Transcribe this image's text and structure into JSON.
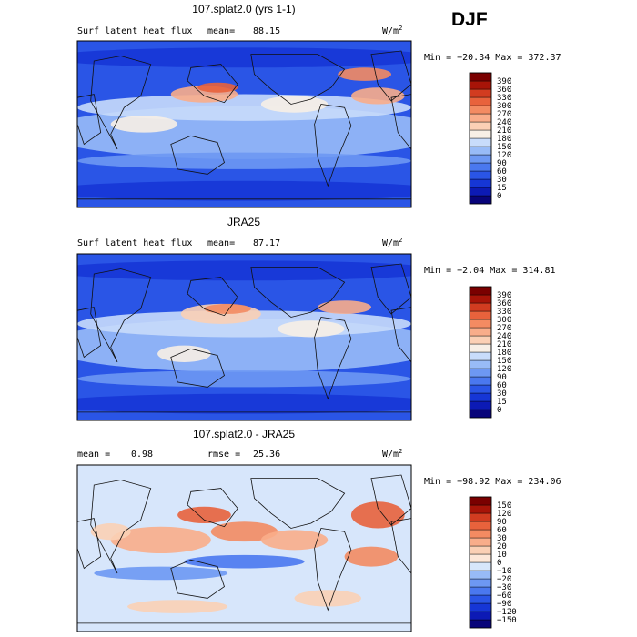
{
  "season": "DJF",
  "units_label": "W/m",
  "units_exp": "2",
  "chart_data": [
    {
      "type": "heatmap",
      "title": "107.splat2.0 (yrs 1-1)",
      "variable": "Surf latent heat flux",
      "stat_label": "mean=",
      "stat_value": "88.15",
      "range_text": "Min = −20.34  Max = 372.37",
      "colorbar_ticks": [
        "0",
        "15",
        "30",
        "60",
        "90",
        "120",
        "150",
        "180",
        "210",
        "240",
        "270",
        "300",
        "330",
        "360",
        "390"
      ],
      "colorbar_colors": [
        "#08047a",
        "#0c1ab5",
        "#1636d6",
        "#2a55e6",
        "#4a78ef",
        "#6d98f3",
        "#98bbf7",
        "#c8dcfb",
        "#f7efe6",
        "#fbd0b5",
        "#f9ad8a",
        "#f38b62",
        "#e8623c",
        "#d23c20",
        "#a81408",
        "#7a0000"
      ]
    },
    {
      "type": "heatmap",
      "title": "JRA25",
      "variable": "Surf latent heat flux",
      "stat_label": "mean=",
      "stat_value": "87.17",
      "range_text": "Min =   −2.04  Max = 314.81",
      "colorbar_ticks": [
        "0",
        "15",
        "30",
        "60",
        "90",
        "120",
        "150",
        "180",
        "210",
        "240",
        "270",
        "300",
        "330",
        "360",
        "390"
      ],
      "colorbar_colors": [
        "#08047a",
        "#0c1ab5",
        "#1636d6",
        "#2a55e6",
        "#4a78ef",
        "#6d98f3",
        "#98bbf7",
        "#c8dcfb",
        "#f7efe6",
        "#fbd0b5",
        "#f9ad8a",
        "#f38b62",
        "#e8623c",
        "#d23c20",
        "#a81408",
        "#7a0000"
      ]
    },
    {
      "type": "heatmap",
      "title": "107.splat2.0 - JRA25",
      "stat1_label": "mean =",
      "stat1_value": "0.98",
      "stat2_label": "rmse =",
      "stat2_value": "25.36",
      "range_text": "Min = −98.92  Max = 234.06",
      "colorbar_ticks": [
        "−150",
        "−120",
        "−90",
        "−60",
        "−30",
        "−20",
        "−10",
        "0",
        "10",
        "20",
        "30",
        "60",
        "90",
        "120",
        "150"
      ],
      "colorbar_colors": [
        "#08047a",
        "#0c1ab5",
        "#1636d6",
        "#2a55e6",
        "#4a78ef",
        "#6d98f3",
        "#98bbf7",
        "#d7e6fb",
        "#fde7d8",
        "#fbd0b5",
        "#f9ad8a",
        "#f38b62",
        "#e8623c",
        "#d23c20",
        "#a81408",
        "#7a0000"
      ]
    }
  ]
}
